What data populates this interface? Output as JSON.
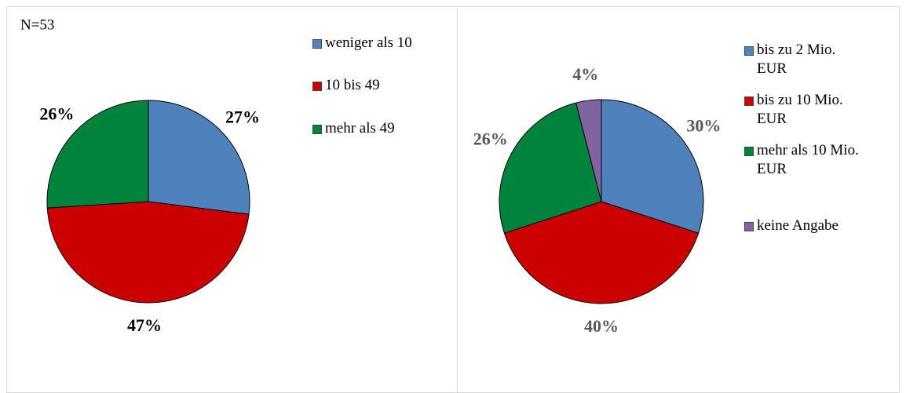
{
  "chart_data": [
    {
      "type": "pie",
      "annotation": "N=53",
      "categories": [
        "weniger als 10",
        "10 bis 49",
        "mehr als 49"
      ],
      "values": [
        27,
        47,
        26
      ],
      "value_labels": [
        "27%",
        "47%",
        "26%"
      ],
      "colors": [
        "#4f81bd",
        "#cc0000",
        "#00843d"
      ]
    },
    {
      "type": "pie",
      "categories": [
        "bis zu 2 Mio. EUR",
        "bis zu 10 Mio. EUR",
        "mehr als 10 Mio. EUR",
        "keine Angabe"
      ],
      "values": [
        30,
        40,
        26,
        4
      ],
      "value_labels": [
        "30%",
        "40%",
        "26%",
        "4%"
      ],
      "colors": [
        "#4f81bd",
        "#cc0000",
        "#00843d",
        "#8064a2"
      ]
    }
  ]
}
